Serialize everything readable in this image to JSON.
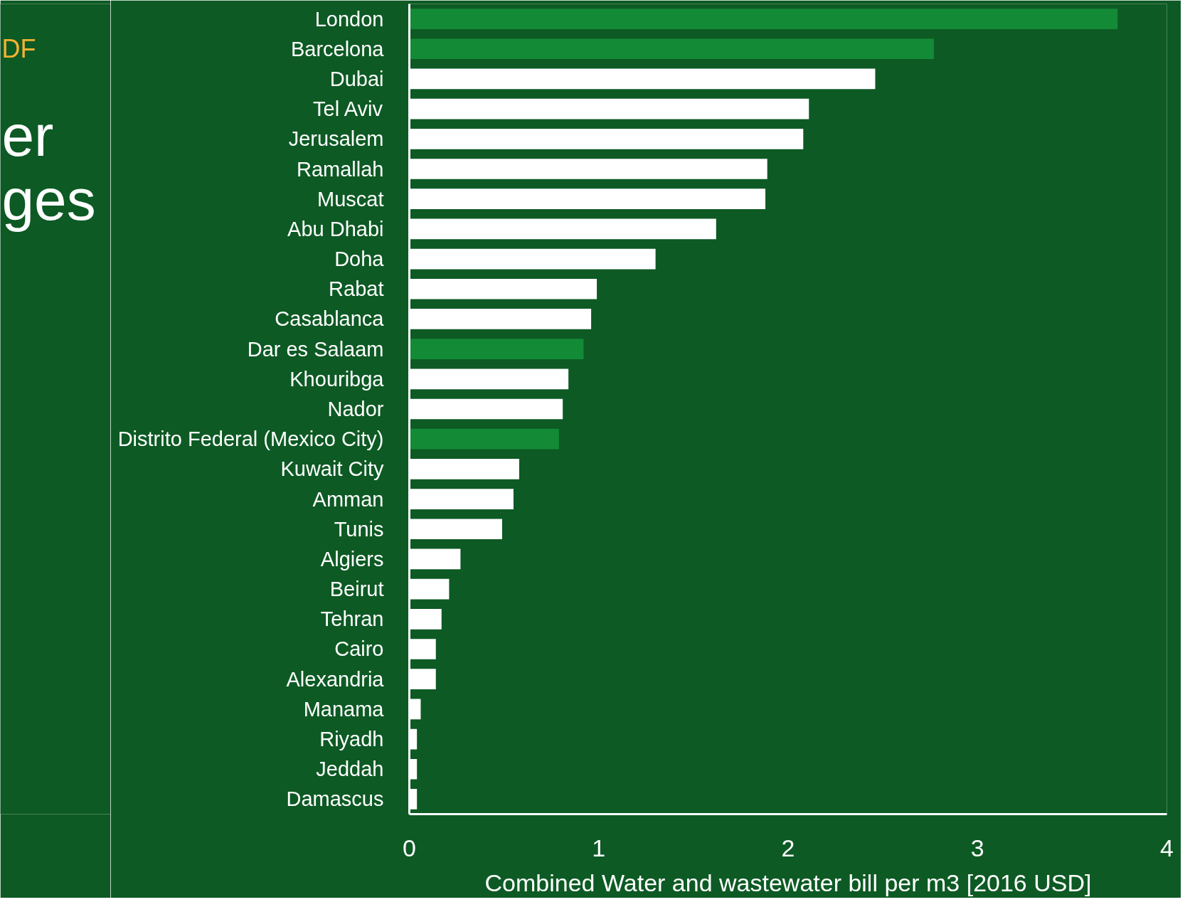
{
  "chart_data": {
    "type": "bar",
    "orientation": "horizontal",
    "categories": [
      "London",
      "Barcelona",
      "Dubai",
      "Tel Aviv",
      "Jerusalem",
      "Ramallah",
      "Muscat",
      "Abu Dhabi",
      "Doha",
      "Rabat",
      "Casablanca",
      "Dar es Salaam",
      "Khouribga",
      "Nador",
      "Distrito Federal (Mexico City)",
      "Kuwait City",
      "Amman",
      "Tunis",
      "Algiers",
      "Beirut",
      "Tehran",
      "Cairo",
      "Alexandria",
      "Manama",
      "Riyadh",
      "Jeddah",
      "Damascus"
    ],
    "values": [
      3.74,
      2.77,
      2.46,
      2.11,
      2.08,
      1.89,
      1.88,
      1.62,
      1.3,
      0.99,
      0.96,
      0.92,
      0.84,
      0.81,
      0.79,
      0.58,
      0.55,
      0.49,
      0.27,
      0.21,
      0.17,
      0.14,
      0.14,
      0.06,
      0.04,
      0.04,
      0.04
    ],
    "colors": [
      "#138a36",
      "#138a36",
      "#ffffff",
      "#ffffff",
      "#ffffff",
      "#ffffff",
      "#ffffff",
      "#ffffff",
      "#ffffff",
      "#ffffff",
      "#ffffff",
      "#138a36",
      "#ffffff",
      "#ffffff",
      "#138a36",
      "#ffffff",
      "#ffffff",
      "#ffffff",
      "#ffffff",
      "#ffffff",
      "#ffffff",
      "#ffffff",
      "#ffffff",
      "#ffffff",
      "#ffffff",
      "#ffffff",
      "#ffffff"
    ],
    "xlabel": "Combined Water and wastewater bill per m3 [2016 USD]",
    "xlim": [
      0,
      4
    ],
    "xticks": [
      0,
      1,
      2,
      3,
      4
    ],
    "annotations": [
      "DF",
      "er",
      "ges"
    ],
    "grid": false
  }
}
